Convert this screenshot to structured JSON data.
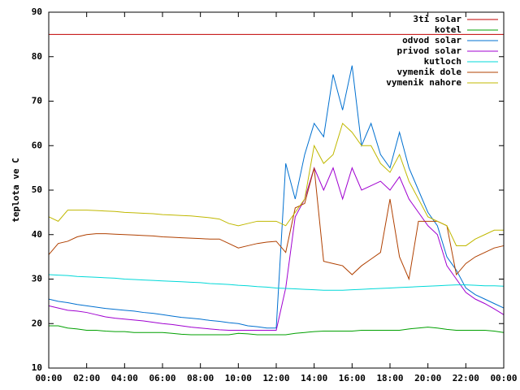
{
  "chart_data": {
    "type": "line",
    "y_label": "teplota ve C",
    "xlim": [
      0,
      24
    ],
    "xticks": [
      {
        "value": 0,
        "label": "00:00"
      },
      {
        "value": 2,
        "label": "02:00"
      },
      {
        "value": 4,
        "label": "04:00"
      },
      {
        "value": 6,
        "label": "06:00"
      },
      {
        "value": 8,
        "label": "08:00"
      },
      {
        "value": 10,
        "label": "10:00"
      },
      {
        "value": 12,
        "label": "12:00"
      },
      {
        "value": 14,
        "label": "14:00"
      },
      {
        "value": 16,
        "label": "16:00"
      },
      {
        "value": 18,
        "label": "18:00"
      },
      {
        "value": 20,
        "label": "20:00"
      },
      {
        "value": 22,
        "label": "22:00"
      },
      {
        "value": 24,
        "label": "00:00"
      }
    ],
    "ylim": [
      10,
      90
    ],
    "yticks": [
      10,
      20,
      30,
      40,
      50,
      60,
      70,
      80,
      90
    ],
    "grid": false,
    "legend": "top-right",
    "x": [
      0,
      0.5,
      1,
      1.5,
      2,
      2.5,
      3,
      3.5,
      4,
      4.5,
      5,
      5.5,
      6,
      6.5,
      7,
      7.5,
      8,
      8.5,
      9,
      9.5,
      10,
      10.5,
      11,
      11.5,
      12,
      12.5,
      13,
      13.5,
      14,
      14.5,
      15,
      15.5,
      16,
      16.5,
      17,
      17.5,
      18,
      18.5,
      19,
      19.5,
      20,
      20.5,
      21,
      21.5,
      22,
      22.5,
      23,
      23.5,
      24
    ],
    "series": [
      {
        "name": "3ti solar",
        "color": "#c00000",
        "values": [
          85,
          85,
          85,
          85,
          85,
          85,
          85,
          85,
          85,
          85,
          85,
          85,
          85,
          85,
          85,
          85,
          85,
          85,
          85,
          85,
          85,
          85,
          85,
          85,
          85,
          85,
          85,
          85,
          85,
          85,
          85,
          85,
          85,
          85,
          85,
          85,
          85,
          85,
          85,
          85,
          85,
          85,
          85,
          85,
          85,
          85,
          85,
          85,
          85
        ]
      },
      {
        "name": "kotel",
        "color": "#00a000",
        "values": [
          19.5,
          19.5,
          19,
          18.8,
          18.5,
          18.5,
          18.3,
          18.2,
          18.2,
          18,
          18,
          18,
          18,
          17.8,
          17.6,
          17.5,
          17.5,
          17.5,
          17.5,
          17.5,
          17.8,
          17.7,
          17.5,
          17.5,
          17.5,
          17.5,
          17.8,
          18,
          18.2,
          18.3,
          18.3,
          18.3,
          18.3,
          18.5,
          18.5,
          18.5,
          18.5,
          18.5,
          18.8,
          19,
          19.2,
          19,
          18.7,
          18.5,
          18.5,
          18.5,
          18.5,
          18.3,
          18
        ]
      },
      {
        "name": "odvod solar",
        "color": "#0070d0",
        "values": [
          25.5,
          25,
          24.7,
          24.3,
          24,
          23.7,
          23.4,
          23.2,
          23,
          22.8,
          22.5,
          22.3,
          22,
          21.7,
          21.4,
          21.2,
          21,
          20.7,
          20.5,
          20.2,
          20,
          19.5,
          19.3,
          19,
          19,
          56,
          48,
          58,
          65,
          62,
          76,
          68,
          78,
          60,
          65,
          58,
          55,
          63,
          55,
          50,
          45,
          42,
          35,
          32,
          28,
          26.5,
          25.5,
          24.5,
          23.5
        ]
      },
      {
        "name": "privod solar",
        "color": "#a000d0",
        "values": [
          24,
          23.5,
          23,
          22.8,
          22.5,
          22,
          21.5,
          21.2,
          21,
          20.8,
          20.6,
          20.3,
          20,
          19.8,
          19.5,
          19.2,
          19,
          18.8,
          18.6,
          18.5,
          18.5,
          18.5,
          18.5,
          18.5,
          18.5,
          28,
          44,
          48,
          55,
          50,
          55,
          48,
          55,
          50,
          51,
          52,
          50,
          53,
          48,
          45,
          42,
          40,
          33,
          30,
          27,
          25.5,
          24.5,
          23.3,
          22
        ]
      },
      {
        "name": "kutloch",
        "color": "#00d8d8",
        "values": [
          31,
          30.9,
          30.8,
          30.6,
          30.5,
          30.4,
          30.3,
          30.2,
          30,
          29.9,
          29.8,
          29.7,
          29.6,
          29.5,
          29.4,
          29.3,
          29.2,
          29,
          28.9,
          28.8,
          28.6,
          28.5,
          28.3,
          28.2,
          28,
          27.9,
          27.8,
          27.7,
          27.6,
          27.5,
          27.5,
          27.5,
          27.6,
          27.7,
          27.8,
          27.9,
          28,
          28.1,
          28.2,
          28.3,
          28.4,
          28.5,
          28.6,
          28.7,
          28.7,
          28.6,
          28.5,
          28.5,
          28.4
        ]
      },
      {
        "name": "vymenik dole",
        "color": "#b04000",
        "values": [
          35.5,
          38,
          38.5,
          39.5,
          40,
          40.2,
          40.2,
          40.1,
          40,
          39.9,
          39.8,
          39.7,
          39.5,
          39.4,
          39.3,
          39.2,
          39.1,
          39,
          39,
          38,
          37,
          37.5,
          38,
          38.3,
          38.5,
          36,
          46,
          47,
          55,
          34,
          33.5,
          33,
          31,
          33,
          34.5,
          36,
          48,
          35,
          30,
          43,
          43,
          43,
          42,
          31,
          33.5,
          35,
          36,
          37,
          37.5
        ]
      },
      {
        "name": "vymenik nahore",
        "color": "#c0b800",
        "values": [
          44,
          43,
          45.5,
          45.5,
          45.5,
          45.4,
          45.3,
          45.2,
          45,
          44.9,
          44.8,
          44.7,
          44.5,
          44.4,
          44.3,
          44.2,
          44,
          43.8,
          43.5,
          42.5,
          42,
          42.5,
          43,
          43,
          43,
          42,
          45,
          48,
          60,
          56,
          58,
          65,
          63,
          60,
          60,
          56,
          54,
          58,
          52,
          48,
          44,
          43,
          42,
          37.5,
          37.5,
          39,
          40,
          41,
          41
        ]
      }
    ]
  }
}
